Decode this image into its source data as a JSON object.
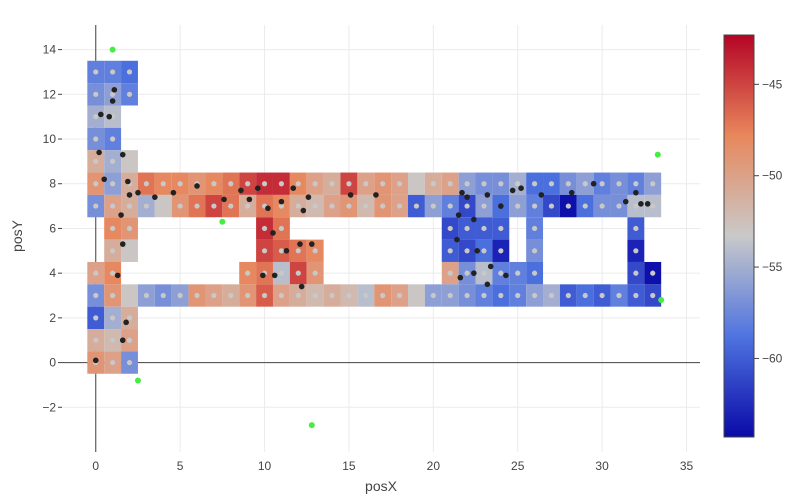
{
  "chart_data": {
    "type": "heatmap",
    "title": "",
    "xlabel": "posX",
    "ylabel": "posY",
    "xlim": [
      -2,
      35.8
    ],
    "ylim": [
      -4,
      15.1
    ],
    "x_ticks": [
      0,
      5,
      10,
      15,
      20,
      25,
      30,
      35
    ],
    "y_ticks": [
      -2,
      0,
      2,
      4,
      6,
      8,
      10,
      12,
      14
    ],
    "x_tick_labels": [
      "0",
      "5",
      "10",
      "15",
      "20",
      "25",
      "30",
      "35"
    ],
    "y_tick_labels": [
      "−2",
      "0",
      "2",
      "4",
      "6",
      "8",
      "10",
      "12",
      "14"
    ],
    "grid": true,
    "cell_size": 1.0,
    "colorbar": {
      "min": -64.3,
      "max": -42.3,
      "ticks": [
        -45,
        -50,
        -55,
        -60
      ],
      "tick_labels": [
        "−45",
        "−50",
        "−55",
        "−60"
      ],
      "colorscale": [
        "#0a0aa8",
        "#4f73e0",
        "#c9c9c9",
        "#e8875c",
        "#b40426"
      ]
    },
    "cells": [
      {
        "x": 0,
        "y": 13,
        "v": -58
      },
      {
        "x": 1,
        "y": 13,
        "v": -58
      },
      {
        "x": 2,
        "y": 13,
        "v": -59
      },
      {
        "x": 0,
        "y": 12,
        "v": -57
      },
      {
        "x": 1,
        "y": 12,
        "v": -56
      },
      {
        "x": 2,
        "y": 12,
        "v": -58
      },
      {
        "x": 0,
        "y": 11,
        "v": -55
      },
      {
        "x": 1,
        "y": 11,
        "v": -54
      },
      {
        "x": 0,
        "y": 10,
        "v": -57
      },
      {
        "x": 1,
        "y": 10,
        "v": -58
      },
      {
        "x": 0,
        "y": 9,
        "v": -51
      },
      {
        "x": 1,
        "y": 9,
        "v": -55
      },
      {
        "x": 2,
        "y": 9,
        "v": -53
      },
      {
        "x": 0,
        "y": 8,
        "v": -49
      },
      {
        "x": 1,
        "y": 8,
        "v": -56
      },
      {
        "x": 2,
        "y": 8,
        "v": -51
      },
      {
        "x": 3,
        "y": 8,
        "v": -47
      },
      {
        "x": 4,
        "y": 8,
        "v": -48
      },
      {
        "x": 5,
        "y": 8,
        "v": -48
      },
      {
        "x": 6,
        "y": 8,
        "v": -49
      },
      {
        "x": 7,
        "y": 8,
        "v": -48
      },
      {
        "x": 8,
        "y": 8,
        "v": -47
      },
      {
        "x": 9,
        "y": 8,
        "v": -45
      },
      {
        "x": 10,
        "y": 8,
        "v": -44
      },
      {
        "x": 11,
        "y": 8,
        "v": -44
      },
      {
        "x": 12,
        "y": 8,
        "v": -48
      },
      {
        "x": 13,
        "y": 8,
        "v": -50
      },
      {
        "x": 14,
        "y": 8,
        "v": -51
      },
      {
        "x": 15,
        "y": 8,
        "v": -45
      },
      {
        "x": 16,
        "y": 8,
        "v": -50
      },
      {
        "x": 17,
        "y": 8,
        "v": -49
      },
      {
        "x": 18,
        "y": 8,
        "v": -50
      },
      {
        "x": 19,
        "y": 8,
        "v": -53
      },
      {
        "x": 20,
        "y": 8,
        "v": -51
      },
      {
        "x": 21,
        "y": 8,
        "v": -50
      },
      {
        "x": 22,
        "y": 8,
        "v": -56
      },
      {
        "x": 23,
        "y": 8,
        "v": -57
      },
      {
        "x": 24,
        "y": 8,
        "v": -57
      },
      {
        "x": 25,
        "y": 8,
        "v": -55
      },
      {
        "x": 26,
        "y": 8,
        "v": -59
      },
      {
        "x": 27,
        "y": 8,
        "v": -59
      },
      {
        "x": 28,
        "y": 8,
        "v": -57
      },
      {
        "x": 29,
        "y": 8,
        "v": -56
      },
      {
        "x": 30,
        "y": 8,
        "v": -58
      },
      {
        "x": 31,
        "y": 8,
        "v": -57
      },
      {
        "x": 32,
        "y": 8,
        "v": -58
      },
      {
        "x": 33,
        "y": 8,
        "v": -56
      },
      {
        "x": 0,
        "y": 7,
        "v": -57
      },
      {
        "x": 1,
        "y": 7,
        "v": -50
      },
      {
        "x": 2,
        "y": 7,
        "v": -51
      },
      {
        "x": 3,
        "y": 7,
        "v": -55
      },
      {
        "x": 4,
        "y": 7,
        "v": -53
      },
      {
        "x": 5,
        "y": 7,
        "v": -49
      },
      {
        "x": 6,
        "y": 7,
        "v": -47
      },
      {
        "x": 7,
        "y": 7,
        "v": -45
      },
      {
        "x": 8,
        "y": 7,
        "v": -47
      },
      {
        "x": 9,
        "y": 7,
        "v": -51
      },
      {
        "x": 10,
        "y": 7,
        "v": -47
      },
      {
        "x": 11,
        "y": 7,
        "v": -48
      },
      {
        "x": 12,
        "y": 7,
        "v": -51
      },
      {
        "x": 13,
        "y": 7,
        "v": -52
      },
      {
        "x": 14,
        "y": 7,
        "v": -50
      },
      {
        "x": 15,
        "y": 7,
        "v": -49
      },
      {
        "x": 16,
        "y": 7,
        "v": -52
      },
      {
        "x": 17,
        "y": 7,
        "v": -49
      },
      {
        "x": 18,
        "y": 7,
        "v": -50
      },
      {
        "x": 19,
        "y": 7,
        "v": -60
      },
      {
        "x": 20,
        "y": 7,
        "v": -56
      },
      {
        "x": 21,
        "y": 7,
        "v": -58
      },
      {
        "x": 22,
        "y": 7,
        "v": -61
      },
      {
        "x": 23,
        "y": 7,
        "v": -56
      },
      {
        "x": 24,
        "y": 7,
        "v": -59
      },
      {
        "x": 25,
        "y": 7,
        "v": -56
      },
      {
        "x": 26,
        "y": 7,
        "v": -58
      },
      {
        "x": 27,
        "y": 7,
        "v": -61
      },
      {
        "x": 28,
        "y": 7,
        "v": -64
      },
      {
        "x": 29,
        "y": 7,
        "v": -59
      },
      {
        "x": 30,
        "y": 7,
        "v": -57
      },
      {
        "x": 31,
        "y": 7,
        "v": -57
      },
      {
        "x": 32,
        "y": 7,
        "v": -54
      },
      {
        "x": 33,
        "y": 7,
        "v": -54
      },
      {
        "x": 1,
        "y": 6,
        "v": -48
      },
      {
        "x": 2,
        "y": 6,
        "v": -49
      },
      {
        "x": 10,
        "y": 6,
        "v": -44
      },
      {
        "x": 11,
        "y": 6,
        "v": -47
      },
      {
        "x": 21,
        "y": 6,
        "v": -61
      },
      {
        "x": 22,
        "y": 6,
        "v": -60
      },
      {
        "x": 23,
        "y": 6,
        "v": -60
      },
      {
        "x": 24,
        "y": 6,
        "v": -60
      },
      {
        "x": 26,
        "y": 6,
        "v": -58
      },
      {
        "x": 32,
        "y": 6,
        "v": -60
      },
      {
        "x": 1,
        "y": 5,
        "v": -51
      },
      {
        "x": 2,
        "y": 5,
        "v": -53
      },
      {
        "x": 10,
        "y": 5,
        "v": -45
      },
      {
        "x": 11,
        "y": 5,
        "v": -46
      },
      {
        "x": 12,
        "y": 5,
        "v": -47
      },
      {
        "x": 13,
        "y": 5,
        "v": -48
      },
      {
        "x": 21,
        "y": 5,
        "v": -60
      },
      {
        "x": 22,
        "y": 5,
        "v": -61
      },
      {
        "x": 23,
        "y": 5,
        "v": -59
      },
      {
        "x": 24,
        "y": 5,
        "v": -63
      },
      {
        "x": 26,
        "y": 5,
        "v": -57
      },
      {
        "x": 32,
        "y": 5,
        "v": -63
      },
      {
        "x": 0,
        "y": 4,
        "v": -50
      },
      {
        "x": 1,
        "y": 4,
        "v": -48
      },
      {
        "x": 9,
        "y": 4,
        "v": -48
      },
      {
        "x": 10,
        "y": 4,
        "v": -47
      },
      {
        "x": 11,
        "y": 4,
        "v": -54
      },
      {
        "x": 12,
        "y": 4,
        "v": -45
      },
      {
        "x": 13,
        "y": 4,
        "v": -49
      },
      {
        "x": 21,
        "y": 4,
        "v": -50
      },
      {
        "x": 22,
        "y": 4,
        "v": -57
      },
      {
        "x": 23,
        "y": 4,
        "v": -54
      },
      {
        "x": 24,
        "y": 4,
        "v": -58
      },
      {
        "x": 25,
        "y": 4,
        "v": -58
      },
      {
        "x": 26,
        "y": 4,
        "v": -59
      },
      {
        "x": 32,
        "y": 4,
        "v": -61
      },
      {
        "x": 33,
        "y": 4,
        "v": -64
      },
      {
        "x": 0,
        "y": 3,
        "v": -57
      },
      {
        "x": 1,
        "y": 3,
        "v": -49
      },
      {
        "x": 2,
        "y": 3,
        "v": -53
      },
      {
        "x": 3,
        "y": 3,
        "v": -56
      },
      {
        "x": 4,
        "y": 3,
        "v": -57
      },
      {
        "x": 5,
        "y": 3,
        "v": -56
      },
      {
        "x": 6,
        "y": 3,
        "v": -49
      },
      {
        "x": 7,
        "y": 3,
        "v": -50
      },
      {
        "x": 8,
        "y": 3,
        "v": -51
      },
      {
        "x": 9,
        "y": 3,
        "v": -49
      },
      {
        "x": 10,
        "y": 3,
        "v": -46
      },
      {
        "x": 11,
        "y": 3,
        "v": -50
      },
      {
        "x": 12,
        "y": 3,
        "v": -51
      },
      {
        "x": 13,
        "y": 3,
        "v": -52
      },
      {
        "x": 14,
        "y": 3,
        "v": -51
      },
      {
        "x": 15,
        "y": 3,
        "v": -52
      },
      {
        "x": 16,
        "y": 3,
        "v": -54
      },
      {
        "x": 17,
        "y": 3,
        "v": -49
      },
      {
        "x": 18,
        "y": 3,
        "v": -50
      },
      {
        "x": 19,
        "y": 3,
        "v": -53
      },
      {
        "x": 20,
        "y": 3,
        "v": -56
      },
      {
        "x": 21,
        "y": 3,
        "v": -56
      },
      {
        "x": 22,
        "y": 3,
        "v": -57
      },
      {
        "x": 23,
        "y": 3,
        "v": -58
      },
      {
        "x": 24,
        "y": 3,
        "v": -59
      },
      {
        "x": 25,
        "y": 3,
        "v": -58
      },
      {
        "x": 26,
        "y": 3,
        "v": -56
      },
      {
        "x": 27,
        "y": 3,
        "v": -55
      },
      {
        "x": 28,
        "y": 3,
        "v": -60
      },
      {
        "x": 29,
        "y": 3,
        "v": -59
      },
      {
        "x": 30,
        "y": 3,
        "v": -60
      },
      {
        "x": 31,
        "y": 3,
        "v": -58
      },
      {
        "x": 32,
        "y": 3,
        "v": -60
      },
      {
        "x": 33,
        "y": 3,
        "v": -61
      },
      {
        "x": 0,
        "y": 2,
        "v": -60
      },
      {
        "x": 1,
        "y": 2,
        "v": -55
      },
      {
        "x": 2,
        "y": 2,
        "v": -51
      },
      {
        "x": 0,
        "y": 1,
        "v": -51
      },
      {
        "x": 1,
        "y": 1,
        "v": -52
      },
      {
        "x": 2,
        "y": 1,
        "v": -50
      },
      {
        "x": 0,
        "y": 0,
        "v": -49
      },
      {
        "x": 1,
        "y": 0,
        "v": -50
      },
      {
        "x": 2,
        "y": 0,
        "v": -57
      }
    ],
    "markers_black": [
      [
        0,
        0.1
      ],
      [
        0.3,
        11.1
      ],
      [
        0.8,
        11.0
      ],
      [
        1.0,
        11.7
      ],
      [
        1.1,
        12.2
      ],
      [
        0.2,
        9.4
      ],
      [
        1.6,
        9.3
      ],
      [
        0.5,
        8.2
      ],
      [
        1.9,
        8.1
      ],
      [
        2.0,
        7.5
      ],
      [
        2.5,
        7.6
      ],
      [
        3.5,
        7.4
      ],
      [
        4.6,
        7.6
      ],
      [
        6.0,
        7.9
      ],
      [
        7.6,
        7.3
      ],
      [
        8.6,
        7.7
      ],
      [
        9.1,
        7.3
      ],
      [
        9.6,
        7.8
      ],
      [
        10.2,
        6.9
      ],
      [
        11.0,
        7.2
      ],
      [
        11.7,
        7.8
      ],
      [
        12.3,
        6.8
      ],
      [
        12.6,
        7.4
      ],
      [
        15.1,
        7.5
      ],
      [
        16.6,
        7.5
      ],
      [
        1.5,
        6.6
      ],
      [
        1.6,
        5.3
      ],
      [
        10.5,
        5.8
      ],
      [
        11.3,
        5.0
      ],
      [
        12.1,
        5.3
      ],
      [
        12.8,
        5.3
      ],
      [
        1.3,
        3.9
      ],
      [
        9.9,
        3.9
      ],
      [
        10.6,
        3.9
      ],
      [
        12.2,
        3.4
      ],
      [
        1.6,
        1.0
      ],
      [
        1.8,
        1.8
      ],
      [
        21.7,
        7.6
      ],
      [
        22.0,
        7.4
      ],
      [
        23.2,
        7.5
      ],
      [
        24.0,
        7.0
      ],
      [
        24.7,
        7.7
      ],
      [
        25.2,
        7.8
      ],
      [
        26.4,
        7.5
      ],
      [
        28.2,
        7.6
      ],
      [
        29.5,
        8.0
      ],
      [
        31.4,
        7.2
      ],
      [
        32.0,
        7.6
      ],
      [
        32.3,
        7.1
      ],
      [
        32.7,
        7.1
      ],
      [
        21.5,
        6.6
      ],
      [
        22.4,
        6.4
      ],
      [
        21.4,
        5.5
      ],
      [
        22.6,
        5.0
      ],
      [
        23.4,
        4.3
      ],
      [
        24.3,
        3.9
      ],
      [
        21.6,
        3.8
      ],
      [
        22.4,
        4.0
      ],
      [
        23.2,
        3.5
      ]
    ],
    "markers_green": [
      [
        1.0,
        14.0
      ],
      [
        7.5,
        6.3
      ],
      [
        12.8,
        -2.8
      ],
      [
        2.5,
        -0.8
      ],
      [
        33.3,
        9.3
      ],
      [
        33.5,
        2.8
      ]
    ]
  }
}
